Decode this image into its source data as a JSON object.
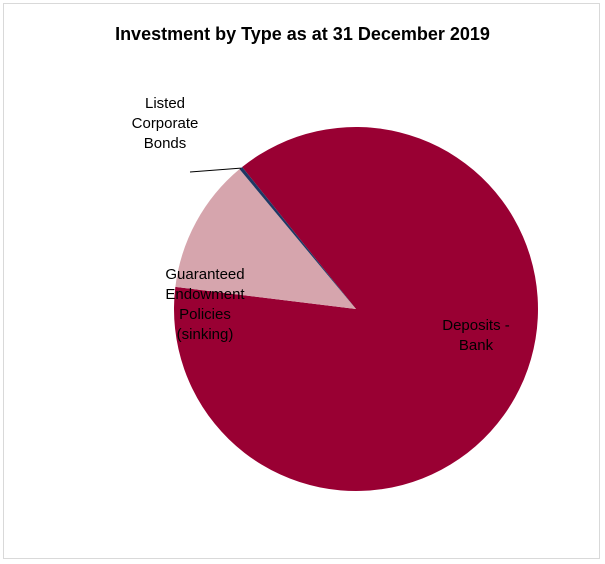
{
  "chart_data": {
    "type": "pie",
    "title": "Investment by Type as at 31 December 2019",
    "slices": [
      {
        "name": "Deposits - Bank",
        "label_lines": [
          "Deposits -",
          "Bank"
        ],
        "value": 87.7,
        "color": "#990033"
      },
      {
        "name": "Guaranteed Endowment Policies (sinking)",
        "label_lines": [
          "Guaranteed",
          "Endowment",
          "Policies",
          "(sinking)"
        ],
        "value": 12.0,
        "color": "#d6a5ad"
      },
      {
        "name": "Listed Corporate Bonds",
        "label_lines": [
          "Listed",
          "Corporate",
          "Bonds"
        ],
        "value": 0.3,
        "color": "#1f3864"
      }
    ]
  }
}
